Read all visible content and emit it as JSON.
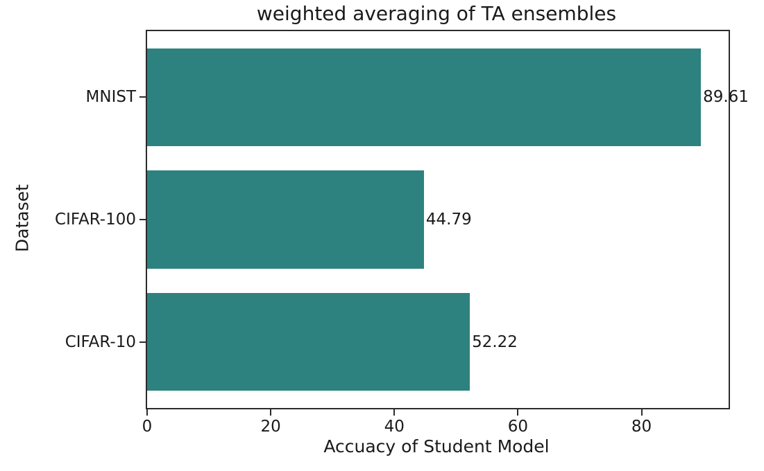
{
  "chart_data": {
    "type": "bar",
    "orientation": "horizontal",
    "title": "weighted averaging of TA ensembles",
    "xlabel": "Accuacy of Student Model",
    "ylabel": "Dataset",
    "categories": [
      "MNIST",
      "CIFAR-100",
      "CIFAR-10"
    ],
    "values": [
      89.61,
      44.79,
      52.22
    ],
    "bar_labels": [
      "89.61",
      "44.79",
      "52.22"
    ],
    "xticks": [
      "0",
      "20",
      "40",
      "60",
      "80"
    ],
    "xtick_values": [
      0,
      20,
      40,
      60,
      80
    ],
    "xlim": [
      0,
      94.09
    ],
    "bar_color": "#2d827f",
    "text_color": "#1a1a1a",
    "spine_color": "#2b2b2b",
    "grid": false,
    "legend": null
  }
}
